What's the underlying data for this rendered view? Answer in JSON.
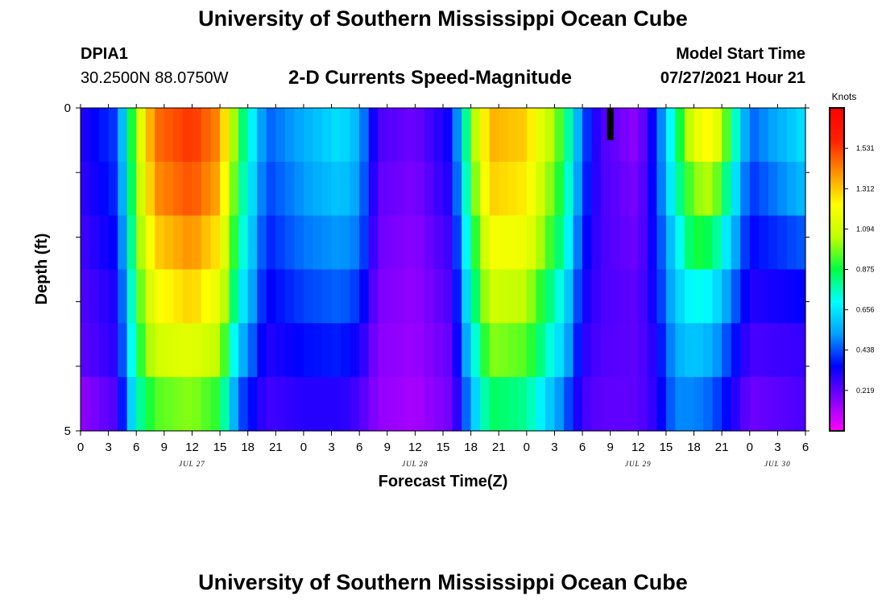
{
  "header": {
    "title": "University of Southern Mississippi Ocean Cube",
    "station_id": "DPIA1",
    "coordinates": "30.2500N  88.0750W",
    "subtitle": "2-D Currents Speed-Magnitude",
    "model_start_label": "Model Start Time",
    "model_start_value": "07/27/2021 Hour 21"
  },
  "footer": {
    "title": "University of Southern Mississippi Ocean Cube"
  },
  "chart_data": {
    "type": "heatmap",
    "title": "2-D Currents Speed-Magnitude",
    "xlabel": "Forecast Time(Z)",
    "ylabel": "Depth (ft)",
    "y_tick_labels": [
      "0",
      "5"
    ],
    "ylim": [
      0,
      5
    ],
    "x_range_hours": [
      0,
      78
    ],
    "x_tick_labels": [
      "0",
      "3",
      "6",
      "9",
      "12",
      "15",
      "18",
      "21",
      "0",
      "3",
      "6",
      "9",
      "12",
      "15",
      "18",
      "21",
      "0",
      "3",
      "6",
      "9",
      "12",
      "15",
      "18",
      "21",
      "0",
      "3",
      "6"
    ],
    "date_labels": [
      {
        "label": "JUL 27",
        "hour": 12
      },
      {
        "label": "JUL 28",
        "hour": 36
      },
      {
        "label": "JUL 29",
        "hour": 60
      },
      {
        "label": "JUL 30",
        "hour": 75
      }
    ],
    "colorbar": {
      "label": "Knots",
      "ticks": [
        "1.531",
        "1.312",
        "1.094",
        "0.875",
        "0.656",
        "0.438",
        "0.219"
      ],
      "range": [
        0,
        1.75
      ],
      "colors": [
        "#ff00ff",
        "#8000ff",
        "#0000ff",
        "#00a0ff",
        "#00ffff",
        "#00ff40",
        "#c0ff00",
        "#ffff00",
        "#ff9000",
        "#ff2000",
        "#ff0000"
      ]
    },
    "depth_levels": 5,
    "anchor_hours": [
      0,
      4,
      6,
      8,
      12,
      15,
      17,
      20,
      24,
      28,
      30,
      32,
      36,
      40,
      42,
      44,
      48,
      52,
      54,
      56,
      60,
      62,
      64,
      66,
      68,
      72,
      78
    ],
    "speed_by_depth": [
      [
        0.3,
        0.42,
        1.05,
        1.45,
        1.55,
        1.4,
        0.9,
        0.45,
        0.55,
        0.65,
        0.55,
        0.25,
        0.2,
        0.35,
        0.95,
        1.35,
        1.3,
        0.9,
        0.45,
        0.25,
        0.15,
        0.4,
        0.8,
        1.15,
        1.25,
        0.45,
        0.65
      ],
      [
        0.28,
        0.4,
        1.0,
        1.4,
        1.5,
        1.35,
        0.85,
        0.42,
        0.52,
        0.6,
        0.52,
        0.22,
        0.18,
        0.32,
        0.9,
        1.3,
        1.25,
        0.85,
        0.42,
        0.25,
        0.18,
        0.4,
        0.75,
        1.0,
        1.05,
        0.4,
        0.58
      ],
      [
        0.26,
        0.36,
        0.95,
        1.3,
        1.4,
        1.25,
        0.8,
        0.38,
        0.48,
        0.52,
        0.48,
        0.2,
        0.16,
        0.28,
        0.82,
        1.2,
        1.18,
        0.78,
        0.38,
        0.25,
        0.2,
        0.38,
        0.65,
        0.9,
        0.85,
        0.35,
        0.45
      ],
      [
        0.24,
        0.32,
        0.9,
        1.2,
        1.3,
        1.15,
        0.72,
        0.34,
        0.42,
        0.46,
        0.4,
        0.18,
        0.15,
        0.25,
        0.75,
        1.1,
        1.05,
        0.68,
        0.34,
        0.25,
        0.22,
        0.36,
        0.6,
        0.72,
        0.68,
        0.3,
        0.35
      ],
      [
        0.22,
        0.3,
        0.85,
        1.1,
        1.15,
        1.05,
        0.6,
        0.3,
        0.36,
        0.38,
        0.32,
        0.16,
        0.14,
        0.22,
        0.65,
        1.0,
        0.95,
        0.6,
        0.3,
        0.24,
        0.22,
        0.32,
        0.55,
        0.6,
        0.55,
        0.25,
        0.28
      ],
      [
        0.15,
        0.25,
        0.75,
        0.95,
        1.0,
        0.9,
        0.45,
        0.26,
        0.3,
        0.3,
        0.25,
        0.15,
        0.12,
        0.2,
        0.55,
        0.85,
        0.8,
        0.48,
        0.26,
        0.22,
        0.22,
        0.3,
        0.5,
        0.5,
        0.45,
        0.2,
        0.25
      ]
    ],
    "no_data_marker": {
      "hour": 57,
      "depth_from": 0,
      "depth_to": 0.5,
      "color": "#000000"
    }
  }
}
